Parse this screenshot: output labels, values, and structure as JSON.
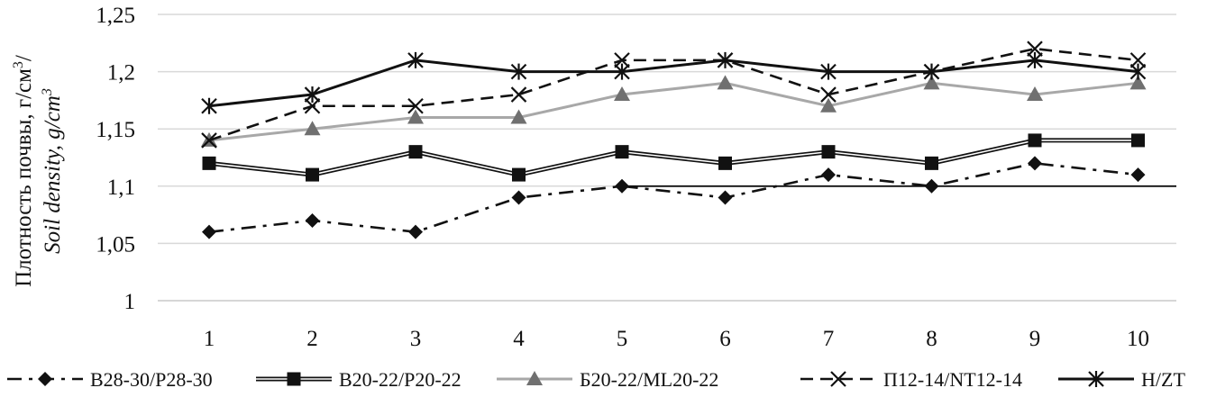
{
  "chart_data": {
    "type": "line",
    "x": [
      1,
      2,
      3,
      4,
      5,
      6,
      7,
      8,
      9,
      10
    ],
    "ylim": [
      1,
      1.25
    ],
    "yticks": [
      "1",
      "1,05",
      "1,1",
      "1,15",
      "1,2",
      "1,25"
    ],
    "xticks": [
      "1",
      "2",
      "3",
      "4",
      "5",
      "6",
      "7",
      "8",
      "9",
      "10"
    ],
    "ylabel_line1": "Плотность почвы, г/см",
    "ylabel_line1_sup": "3",
    "ylabel_line1_tail": "/",
    "ylabel_line2": "Soil density, g/cm",
    "ylabel_line2_sup": "3",
    "grid": "horizontal",
    "legend_position": "bottom",
    "series": [
      {
        "name": "В28-30/P28-30",
        "values": [
          1.06,
          1.07,
          1.06,
          1.09,
          1.1,
          1.09,
          1.11,
          1.1,
          1.12,
          1.11
        ],
        "color": "#111111",
        "marker": "diamond",
        "dash": "dashdot"
      },
      {
        "name": "В20-22/P20-22",
        "values": [
          1.12,
          1.11,
          1.13,
          1.11,
          1.13,
          1.12,
          1.13,
          1.12,
          1.14,
          1.14
        ],
        "color": "#111111",
        "marker": "square",
        "dash": "double"
      },
      {
        "name": "Б20-22/ML20-22",
        "values": [
          1.14,
          1.15,
          1.16,
          1.16,
          1.18,
          1.19,
          1.17,
          1.19,
          1.18,
          1.19
        ],
        "color": "#707070",
        "line_color": "#a8a8a8",
        "marker": "triangle",
        "dash": "solid"
      },
      {
        "name": "П12-14/NT12-14",
        "values": [
          1.14,
          1.17,
          1.17,
          1.18,
          1.21,
          1.21,
          1.18,
          1.2,
          1.22,
          1.21
        ],
        "color": "#111111",
        "marker": "x",
        "dash": "dashed"
      },
      {
        "name": "Н/ZT",
        "values": [
          1.17,
          1.18,
          1.21,
          1.2,
          1.2,
          1.21,
          1.2,
          1.2,
          1.21,
          1.2
        ],
        "color": "#111111",
        "marker": "star",
        "dash": "solid"
      }
    ]
  }
}
